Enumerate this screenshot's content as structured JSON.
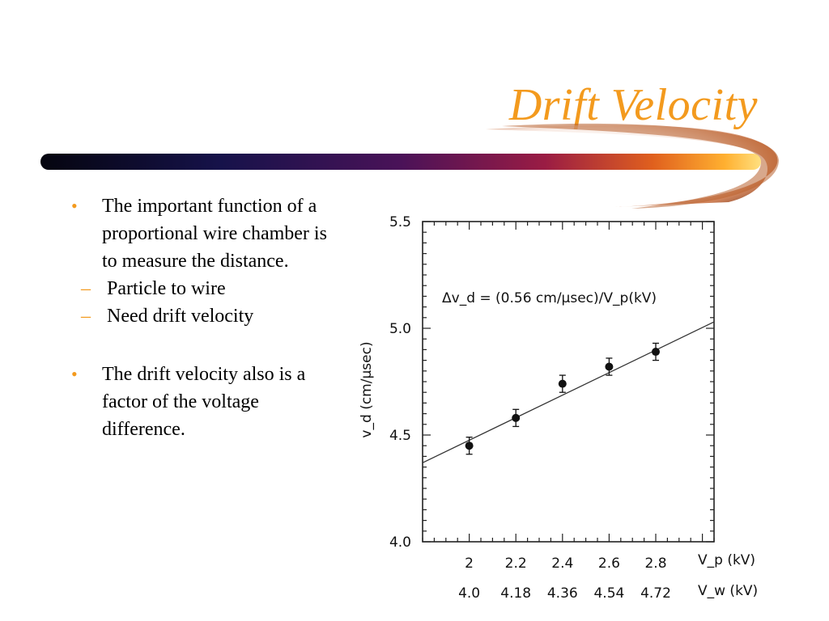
{
  "slide": {
    "title": "Drift Velocity",
    "bullets": [
      {
        "text": "The important function of a proportional wire chamber is to measure the distance.",
        "subitems": [
          "Particle to wire",
          "Need drift velocity"
        ]
      },
      {
        "text": "The drift velocity also is a factor of the voltage difference.",
        "subitems": []
      }
    ],
    "bullet_glyph": "•",
    "sub_glyph": "–"
  },
  "colors": {
    "title": "#f39a1e",
    "bullet": "#f39a1e",
    "bar_gradient": [
      "#0a0a1a",
      "#1c1060",
      "#6a1060",
      "#c8302a",
      "#f08a1e",
      "#ffc040"
    ]
  },
  "chart_data": {
    "type": "scatter",
    "ylabel": "v_d (cm/μsec)",
    "ylim": [
      4.0,
      5.5
    ],
    "yticks": [
      4.0,
      4.5,
      5.0,
      5.5
    ],
    "ytick_labels": [
      "4.0",
      "4.5",
      "5.0",
      "5.5"
    ],
    "xlim": [
      1.8,
      3.05
    ],
    "xticks": [
      2.0,
      2.2,
      2.4,
      2.6,
      2.8
    ],
    "xtick_labels_vp": [
      "2",
      "2.2",
      "2.4",
      "2.6",
      "2.8"
    ],
    "xtick_labels_vw": [
      "4.0",
      "4.18",
      "4.36",
      "4.54",
      "4.72"
    ],
    "xlabel_vp": "V_p (kV)",
    "xlabel_vw": "V_w (kV)",
    "annotation": "Δv_d = (0.56 cm/μsec)/V_p(kV)",
    "points": [
      {
        "x": 2.0,
        "y": 4.45,
        "err": 0.04
      },
      {
        "x": 2.2,
        "y": 4.58,
        "err": 0.04
      },
      {
        "x": 2.4,
        "y": 4.74,
        "err": 0.04
      },
      {
        "x": 2.6,
        "y": 4.82,
        "err": 0.04
      },
      {
        "x": 2.8,
        "y": 4.89,
        "err": 0.04
      }
    ],
    "fit_line": {
      "x": [
        1.8,
        3.05
      ],
      "y": [
        4.37,
        5.03
      ]
    },
    "grid": false,
    "legend": "none"
  }
}
